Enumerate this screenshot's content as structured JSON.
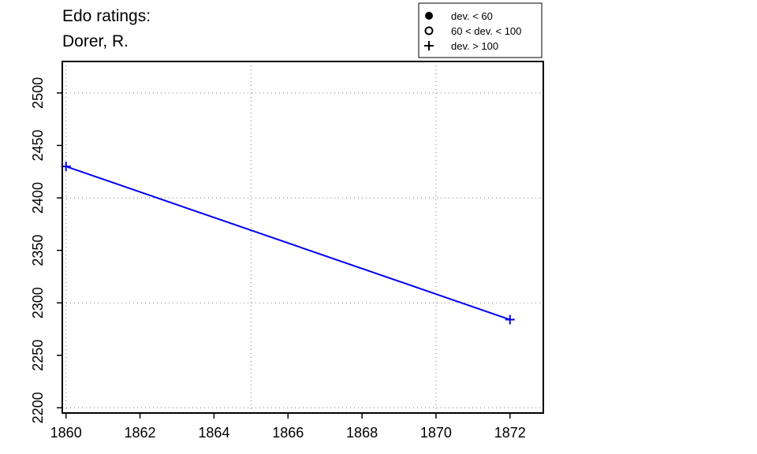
{
  "chart_data": {
    "type": "line",
    "title_lines": [
      "Edo ratings:",
      "Dorer, R."
    ],
    "xlabel": "",
    "ylabel": "",
    "x_ticks": [
      1860,
      1862,
      1864,
      1866,
      1868,
      1870,
      1872
    ],
    "y_ticks": [
      2200,
      2250,
      2300,
      2350,
      2400,
      2450,
      2500
    ],
    "xlim": [
      1859.9,
      1872.9
    ],
    "ylim": [
      2195,
      2530
    ],
    "grid": true,
    "series": [
      {
        "color": "#0000ee",
        "points": [
          {
            "x": 1860,
            "y": 2430,
            "marker": "plus"
          },
          {
            "x": 1872,
            "y": 2284,
            "marker": "plus"
          }
        ]
      }
    ],
    "legend": {
      "position": "top-right",
      "entries": [
        {
          "marker": "filled-circle",
          "label": "dev. < 60"
        },
        {
          "marker": "open-circle",
          "label": "60 < dev. < 100"
        },
        {
          "marker": "plus",
          "label": "dev. > 100"
        }
      ]
    }
  }
}
